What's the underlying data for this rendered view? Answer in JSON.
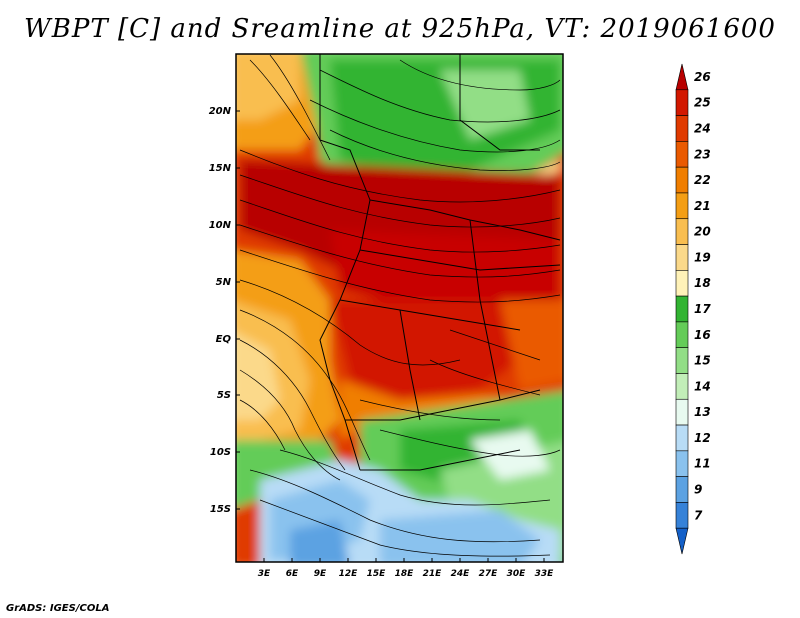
{
  "title": "WBPT [C] and Sreamline at 925hPa, VT: 2019061600",
  "credit": "GrADS: IGES/COLA",
  "map": {
    "lat_labels": [
      "20N",
      "15N",
      "10N",
      "5N",
      "EQ",
      "5S",
      "10S",
      "15S"
    ],
    "lon_labels": [
      "3E",
      "6E",
      "9E",
      "12E",
      "15E",
      "18E",
      "21E",
      "24E",
      "27E",
      "30E",
      "33E"
    ],
    "fields": [
      "wet-bulb potential temperature shading",
      "925hPa streamlines",
      "country borders"
    ]
  },
  "colorbar": {
    "labels": [
      "26",
      "25",
      "24",
      "23",
      "22",
      "21",
      "20",
      "19",
      "18",
      "17",
      "16",
      "15",
      "14",
      "13",
      "12",
      "11",
      "9",
      "7"
    ],
    "colors": [
      "#b80000",
      "#d21800",
      "#e03a00",
      "#ea5a00",
      "#f07e00",
      "#f49e14",
      "#f9be50",
      "#fbd98a",
      "#fff2b8",
      "#32b432",
      "#64cc58",
      "#92de86",
      "#c2eeb8",
      "#e8faf0",
      "#b8dcf6",
      "#8ac2ee",
      "#5ca2e2",
      "#3682d8",
      "#1460c8"
    ]
  }
}
